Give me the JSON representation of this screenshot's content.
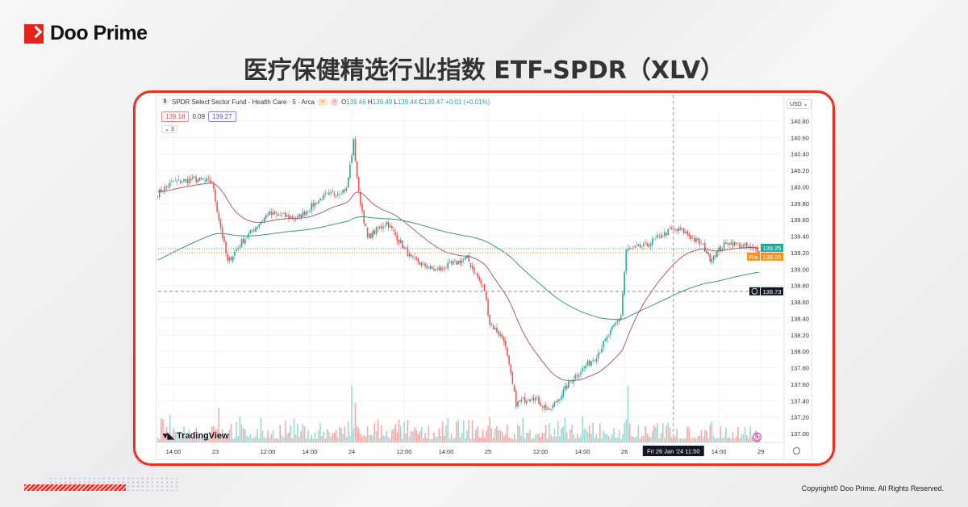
{
  "brand": {
    "name": "Doo Prime"
  },
  "title": "医疗保健精选行业指数 ETF-SPDR（XLV）",
  "copyright": "Copyright© Doo Prime. All Rights Reserved.",
  "legend": {
    "symbol_icon": "$",
    "name": "SPDR Select Sector Fund - Health Care · 5 · Arca",
    "o_label": "O",
    "o": "139.46",
    "h_label": "H",
    "h": "139.49",
    "l_label": "L",
    "l": "139.44",
    "c_label": "C",
    "c": "139.47",
    "change": "+0.01 (+0.01%)",
    "bid": "139.18",
    "spread": "0.09",
    "ask": "139.27",
    "indicators_toggle": "⌄ 3"
  },
  "currency": "USD ⌄",
  "watermark": "TradingView",
  "colors": {
    "up": "#26a69a",
    "down": "#ef5350",
    "ma_short": "#a64d60",
    "ma_long": "#3d9a70",
    "last_price": "#26a69a",
    "pre_market": "#f7931a",
    "frame": "#e8321f"
  },
  "chart_data": {
    "type": "candlestick",
    "interval": "5",
    "yticks": [
      "140.80",
      "140.60",
      "140.40",
      "140.20",
      "140.00",
      "139.80",
      "139.60",
      "139.40",
      "139.20",
      "139.00",
      "138.80",
      "138.60",
      "138.40",
      "138.20",
      "138.00",
      "137.80",
      "137.60",
      "137.40",
      "137.20",
      "137.00"
    ],
    "ylim": [
      137.0,
      140.8
    ],
    "xticks": [
      {
        "label": "14:00",
        "t": "01-22 14:00"
      },
      {
        "label": "23",
        "t": "01-23 09:30"
      },
      {
        "label": "12:00",
        "t": "01-23 12:00"
      },
      {
        "label": "14:00",
        "t": "01-23 14:00"
      },
      {
        "label": "24",
        "t": "01-24 09:30"
      },
      {
        "label": "12:00",
        "t": "01-24 12:00"
      },
      {
        "label": "14:00",
        "t": "01-24 14:00"
      },
      {
        "label": "25",
        "t": "01-25 09:30"
      },
      {
        "label": "12:00",
        "t": "01-25 12:00"
      },
      {
        "label": "14:00",
        "t": "01-25 14:00"
      },
      {
        "label": "26",
        "t": "01-26 09:30"
      },
      {
        "label": "14:00",
        "t": "01-26 14:00"
      },
      {
        "label": "29",
        "t": "01-29 09:30"
      }
    ],
    "close_path": [
      {
        "t": "01-22 13:15",
        "close": 139.92
      },
      {
        "t": "01-22 14:00",
        "close": 140.06
      },
      {
        "t": "01-22 15:00",
        "close": 140.09
      },
      {
        "t": "01-22 15:50",
        "close": 140.06
      },
      {
        "t": "01-23 09:35",
        "close": 139.72
      },
      {
        "t": "01-23 10:05",
        "close": 139.08
      },
      {
        "t": "01-23 10:45",
        "close": 139.33
      },
      {
        "t": "01-23 12:00",
        "close": 139.67
      },
      {
        "t": "01-23 13:25",
        "close": 139.62
      },
      {
        "t": "01-23 14:35",
        "close": 139.87
      },
      {
        "t": "01-23 15:45",
        "close": 139.97
      },
      {
        "t": "01-24 09:35",
        "close": 140.55
      },
      {
        "t": "01-24 09:50",
        "close": 139.92
      },
      {
        "t": "01-24 10:15",
        "close": 139.38
      },
      {
        "t": "01-24 11:10",
        "close": 139.57
      },
      {
        "t": "01-24 12:20",
        "close": 139.13
      },
      {
        "t": "01-24 13:30",
        "close": 138.98
      },
      {
        "t": "01-24 15:00",
        "close": 139.13
      },
      {
        "t": "01-24 15:50",
        "close": 138.74
      },
      {
        "t": "01-25 09:35",
        "close": 138.34
      },
      {
        "t": "01-25 10:15",
        "close": 138.15
      },
      {
        "t": "01-25 10:50",
        "close": 137.36
      },
      {
        "t": "01-25 11:35",
        "close": 137.46
      },
      {
        "t": "01-25 12:25",
        "close": 137.27
      },
      {
        "t": "01-25 13:30",
        "close": 137.66
      },
      {
        "t": "01-25 14:40",
        "close": 137.95
      },
      {
        "t": "01-25 15:50",
        "close": 138.44
      },
      {
        "t": "01-26 09:35",
        "close": 139.23
      },
      {
        "t": "01-26 10:30",
        "close": 139.28
      },
      {
        "t": "01-26 11:40",
        "close": 139.47
      },
      {
        "t": "01-26 12:15",
        "close": 139.47
      },
      {
        "t": "01-26 13:15",
        "close": 139.28
      },
      {
        "t": "01-26 13:35",
        "close": 139.13
      },
      {
        "t": "01-26 14:25",
        "close": 139.33
      },
      {
        "t": "01-26 15:55",
        "close": 139.23
      }
    ],
    "last_price": {
      "value": "139.25"
    },
    "pre_market": {
      "label": "Pre",
      "value": "139.20"
    },
    "crosshair": {
      "price": "138.73",
      "time": "Fri 26 Jan '24  11:50",
      "t": "01-26 11:50"
    }
  }
}
